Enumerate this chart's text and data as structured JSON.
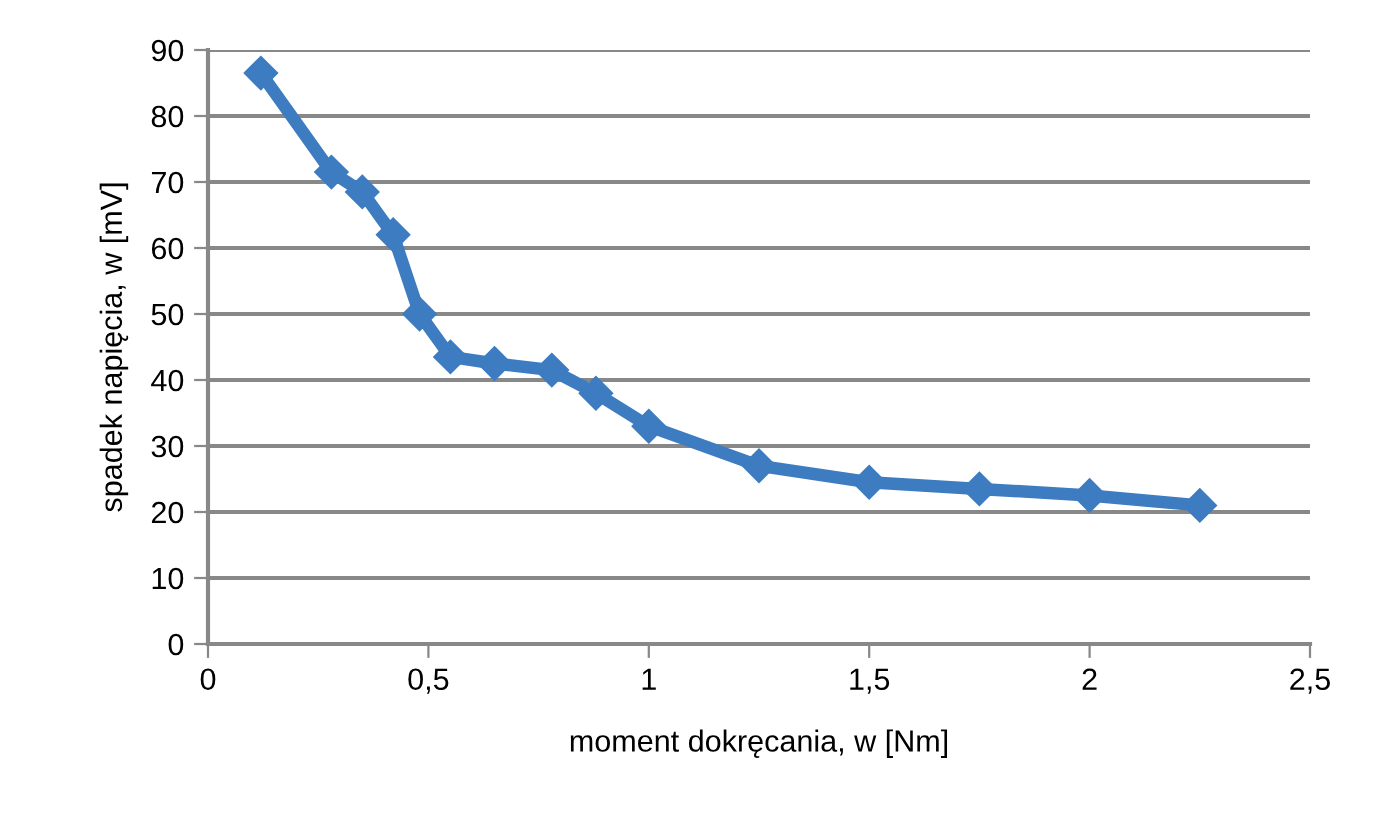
{
  "chart_data": {
    "type": "line",
    "xlabel": "moment dokręcania, w [Nm]",
    "ylabel": "spadek napięcia, w [mV]",
    "x": [
      0.12,
      0.28,
      0.35,
      0.42,
      0.48,
      0.55,
      0.65,
      0.78,
      0.88,
      1.0,
      1.25,
      1.5,
      1.75,
      2.0,
      2.25
    ],
    "series": [
      {
        "color": "#3d7cc0",
        "values": [
          86.5,
          71.5,
          68.5,
          62,
          50,
          43.5,
          42.5,
          41.5,
          38,
          33,
          27,
          24.5,
          23.5,
          22.5,
          21
        ]
      }
    ],
    "xlim": [
      0,
      2.5
    ],
    "ylim": [
      0,
      90
    ],
    "xticks": [
      0,
      {
        "value": 0.5,
        "label": "0,5"
      },
      1,
      {
        "value": 1.5,
        "label": "1,5"
      },
      2,
      {
        "value": 2.5,
        "label": "2,5"
      }
    ],
    "yticks": [
      0,
      10,
      20,
      30,
      40,
      50,
      60,
      70,
      80,
      90
    ],
    "grid": "y",
    "marker": "diamond",
    "line_style": "solid",
    "legend": false
  }
}
